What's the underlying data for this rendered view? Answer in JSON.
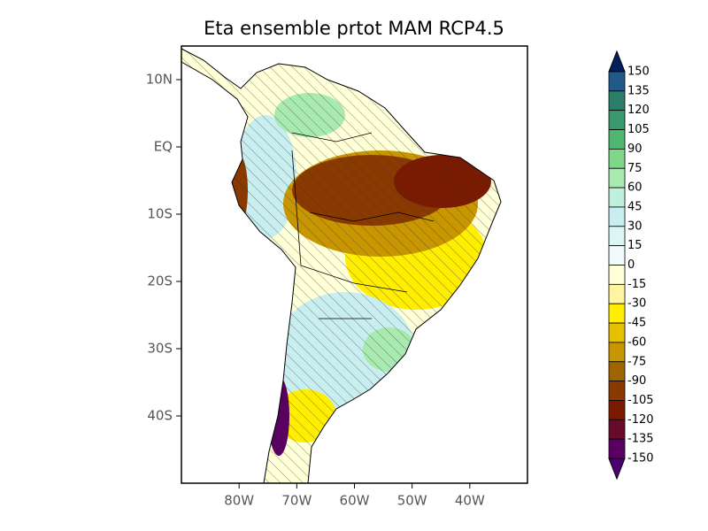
{
  "map": {
    "title": "Eta ensemble prtot MAM RCP4.5",
    "lonlim": [
      -90,
      -30
    ],
    "latlim": [
      -50,
      15
    ],
    "lat_ticks": [
      {
        "value": 10,
        "label": "10N"
      },
      {
        "value": 0,
        "label": "EQ"
      },
      {
        "value": -10,
        "label": "10S"
      },
      {
        "value": -20,
        "label": "20S"
      },
      {
        "value": -30,
        "label": "30S"
      },
      {
        "value": -40,
        "label": "40S"
      }
    ],
    "lon_ticks": [
      {
        "value": -80,
        "label": "80W"
      },
      {
        "value": -70,
        "label": "70W"
      },
      {
        "value": -60,
        "label": "60W"
      },
      {
        "value": -50,
        "label": "50W"
      },
      {
        "value": -40,
        "label": "40W"
      }
    ]
  },
  "colorbar": {
    "levels": [
      150,
      135,
      120,
      105,
      90,
      75,
      60,
      45,
      30,
      15,
      0,
      -15,
      -30,
      -45,
      -60,
      -75,
      -90,
      -105,
      -120,
      -135,
      -150
    ],
    "colors": [
      "#1f5a8a",
      "#2b7f6a",
      "#3a9a6e",
      "#4fb870",
      "#7fd88a",
      "#a8eab0",
      "#bff0dc",
      "#c8eef0",
      "#dcf5f5",
      "#f2fbfb",
      "#ffffd8",
      "#fff5a0",
      "#ffee00",
      "#e6c000",
      "#c89600",
      "#a06400",
      "#8a3a00",
      "#7a1a00",
      "#6a0a2a",
      "#5a0060"
    ],
    "top_color": "#00205f",
    "bottom_color": "#4a0070"
  }
}
